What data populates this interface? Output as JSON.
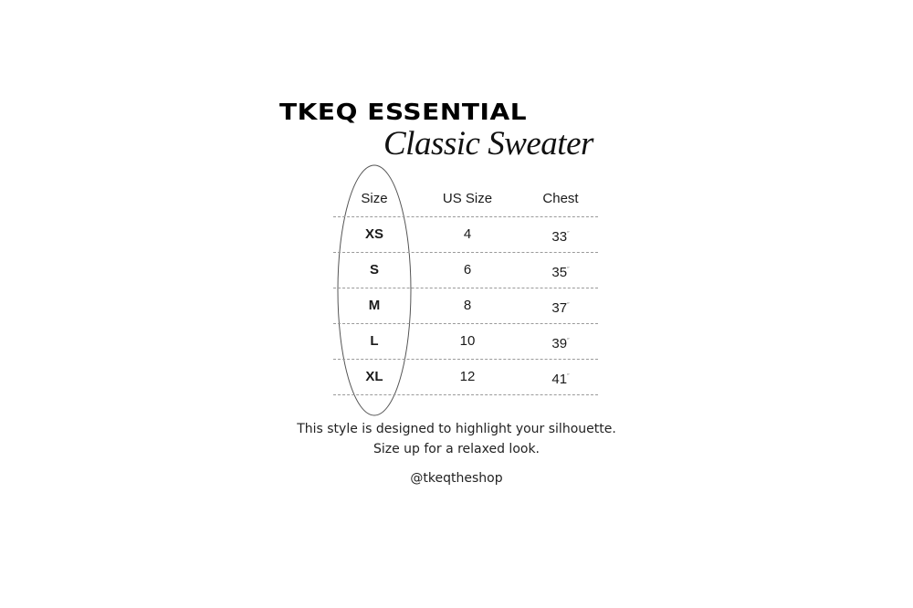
{
  "header": {
    "brand": "TKEQ ESSENTIAL",
    "product": "Classic Sweater"
  },
  "table": {
    "columns": [
      "Size",
      "US Size",
      "Chest"
    ],
    "rows": [
      {
        "size": "XS",
        "us": "4",
        "chest": "33",
        "unit": "″"
      },
      {
        "size": "S",
        "us": "6",
        "chest": "35",
        "unit": "″"
      },
      {
        "size": "M",
        "us": "8",
        "chest": "37",
        "unit": "″"
      },
      {
        "size": "L",
        "us": "10",
        "chest": "39",
        "unit": "″"
      },
      {
        "size": "XL",
        "us": "12",
        "chest": "41",
        "unit": "″"
      }
    ]
  },
  "note": {
    "line1": "This style is designed to highlight your silhouette.",
    "line2": "Size up for a relaxed look."
  },
  "handle": "@tkeqtheshop"
}
